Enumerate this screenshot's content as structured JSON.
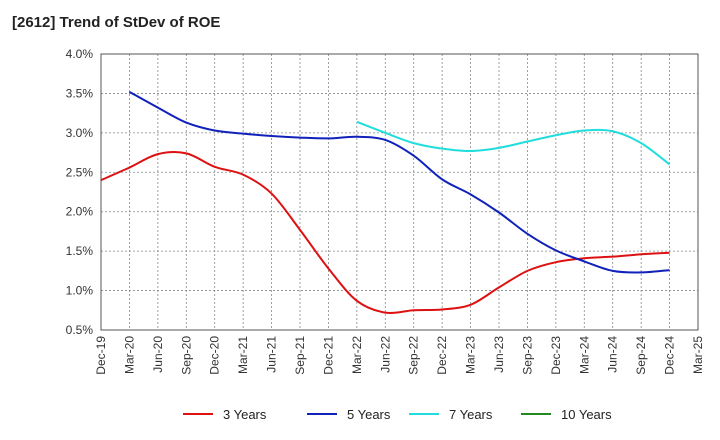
{
  "title": "[2612]  Trend of StDev of ROE",
  "colors": {
    "grid": "#888888",
    "axis": "#555555"
  },
  "chart_data": {
    "type": "line",
    "title": "[2612]  Trend of StDev of ROE",
    "x_ticks": [
      "Dec-19",
      "Mar-20",
      "Jun-20",
      "Sep-20",
      "Dec-20",
      "Mar-21",
      "Jun-21",
      "Sep-21",
      "Dec-21",
      "Mar-22",
      "Jun-22",
      "Sep-22",
      "Dec-22",
      "Mar-23",
      "Jun-23",
      "Sep-23",
      "Dec-23",
      "Mar-24",
      "Jun-24",
      "Sep-24",
      "Dec-24",
      "Mar-25"
    ],
    "y_ticks": [
      "0.5%",
      "1.0%",
      "1.5%",
      "2.0%",
      "2.5%",
      "3.0%",
      "3.5%",
      "4.0%"
    ],
    "ylim": [
      0.5,
      4.0
    ],
    "grid": true,
    "legend_position": "bottom",
    "series": [
      {
        "name": "3 Years",
        "color": "#dd1111",
        "x": [
          "Dec-19",
          "Mar-20",
          "Jun-20",
          "Sep-20",
          "Dec-20",
          "Mar-21",
          "Jun-21",
          "Sep-21",
          "Dec-21",
          "Mar-22",
          "Jun-22",
          "Sep-22",
          "Dec-22",
          "Mar-23",
          "Jun-23",
          "Sep-23",
          "Dec-23",
          "Mar-24",
          "Jun-24",
          "Sep-24",
          "Dec-24"
        ],
        "values": [
          2.4,
          2.56,
          2.73,
          2.74,
          2.57,
          2.47,
          2.23,
          1.77,
          1.28,
          0.87,
          0.72,
          0.75,
          0.76,
          0.82,
          1.04,
          1.25,
          1.36,
          1.41,
          1.43,
          1.46,
          1.48
        ]
      },
      {
        "name": "5 Years",
        "color": "#1122bb",
        "x": [
          "Mar-20",
          "Jun-20",
          "Sep-20",
          "Dec-20",
          "Mar-21",
          "Jun-21",
          "Sep-21",
          "Dec-21",
          "Mar-22",
          "Jun-22",
          "Sep-22",
          "Dec-22",
          "Mar-23",
          "Jun-23",
          "Sep-23",
          "Dec-23",
          "Mar-24",
          "Jun-24",
          "Sep-24",
          "Dec-24"
        ],
        "values": [
          3.52,
          3.32,
          3.13,
          3.03,
          2.99,
          2.96,
          2.94,
          2.93,
          2.95,
          2.91,
          2.71,
          2.41,
          2.22,
          1.99,
          1.72,
          1.51,
          1.37,
          1.25,
          1.23,
          1.26
        ]
      },
      {
        "name": "7 Years",
        "color": "#22dddd",
        "x": [
          "Mar-22",
          "Jun-22",
          "Sep-22",
          "Dec-22",
          "Mar-23",
          "Jun-23",
          "Sep-23",
          "Dec-23",
          "Mar-24",
          "Jun-24",
          "Sep-24",
          "Dec-24"
        ],
        "values": [
          3.14,
          3.0,
          2.87,
          2.8,
          2.77,
          2.81,
          2.89,
          2.97,
          3.03,
          3.02,
          2.87,
          2.6
        ]
      },
      {
        "name": "10 Years",
        "color": "#228822",
        "x": [],
        "values": []
      }
    ]
  }
}
